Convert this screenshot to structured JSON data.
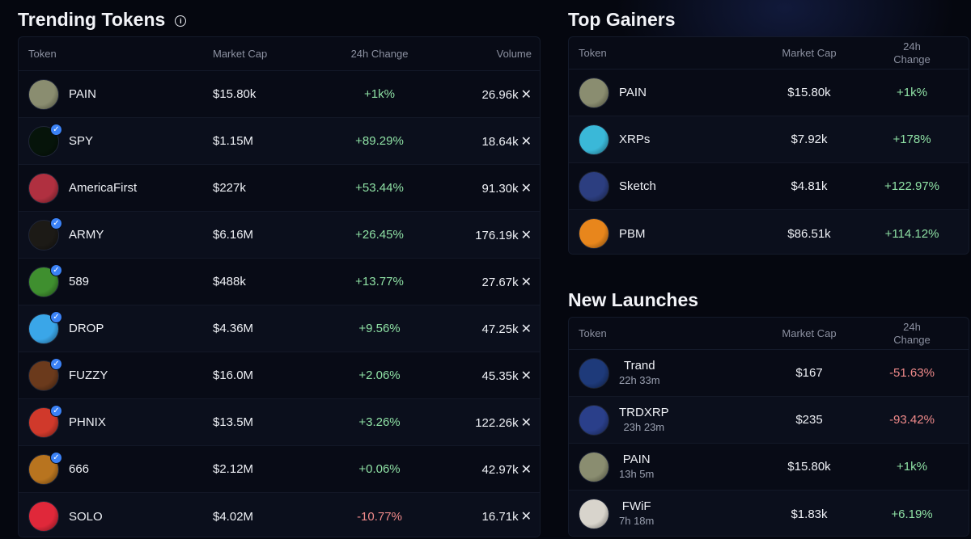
{
  "trending": {
    "title": "Trending Tokens",
    "headers": {
      "token": "Token",
      "mcap": "Market Cap",
      "change": "24h Change",
      "volume": "Volume"
    },
    "rows": [
      {
        "name": "PAIN",
        "mcap": "$15.80k",
        "change": "+1k%",
        "volume": "26.96k",
        "dir": "pos",
        "verified": false,
        "color": "#8a8d70"
      },
      {
        "name": "SPY",
        "mcap": "$1.15M",
        "change": "+89.29%",
        "volume": "18.64k",
        "dir": "pos",
        "verified": true,
        "color": "#06140a"
      },
      {
        "name": "AmericaFirst",
        "mcap": "$227k",
        "change": "+53.44%",
        "volume": "91.30k",
        "dir": "pos",
        "verified": false,
        "color": "#b03040"
      },
      {
        "name": "ARMY",
        "mcap": "$6.16M",
        "change": "+26.45%",
        "volume": "176.19k",
        "dir": "pos",
        "verified": true,
        "color": "#1c1a16"
      },
      {
        "name": "589",
        "mcap": "$488k",
        "change": "+13.77%",
        "volume": "27.67k",
        "dir": "pos",
        "verified": true,
        "color": "#3f8f2f"
      },
      {
        "name": "DROP",
        "mcap": "$4.36M",
        "change": "+9.56%",
        "volume": "47.25k",
        "dir": "pos",
        "verified": true,
        "color": "#3aa6e8"
      },
      {
        "name": "FUZZY",
        "mcap": "$16.0M",
        "change": "+2.06%",
        "volume": "45.35k",
        "dir": "pos",
        "verified": true,
        "color": "#6b3a1c"
      },
      {
        "name": "PHNIX",
        "mcap": "$13.5M",
        "change": "+3.26%",
        "volume": "122.26k",
        "dir": "pos",
        "verified": true,
        "color": "#d0392b"
      },
      {
        "name": "666",
        "mcap": "$2.12M",
        "change": "+0.06%",
        "volume": "42.97k",
        "dir": "pos",
        "verified": true,
        "color": "#b8741f"
      },
      {
        "name": "SOLO",
        "mcap": "$4.02M",
        "change": "-10.77%",
        "volume": "16.71k",
        "dir": "neg",
        "verified": false,
        "color": "#e0283a"
      }
    ]
  },
  "gainers": {
    "title": "Top Gainers",
    "headers": {
      "token": "Token",
      "mcap": "Market Cap",
      "change_l1": "24h",
      "change_l2": "Change"
    },
    "rows": [
      {
        "name": "PAIN",
        "mcap": "$15.80k",
        "change": "+1k%",
        "dir": "pos",
        "color": "#8a8d70"
      },
      {
        "name": "XRPs",
        "mcap": "$7.92k",
        "change": "+178%",
        "dir": "pos",
        "color": "#3ab8d8"
      },
      {
        "name": "Sketch",
        "mcap": "$4.81k",
        "change": "+122.97%",
        "dir": "pos",
        "color": "#2c3e80"
      },
      {
        "name": "PBM",
        "mcap": "$86.51k",
        "change": "+114.12%",
        "dir": "pos",
        "color": "#e8861c"
      }
    ]
  },
  "launches": {
    "title": "New Launches",
    "headers": {
      "token": "Token",
      "mcap": "Market Cap",
      "change_l1": "24h",
      "change_l2": "Change"
    },
    "rows": [
      {
        "name": "Trand",
        "age": "22h 33m",
        "mcap": "$167",
        "change": "-51.63%",
        "dir": "neg",
        "color": "#1e3a7a"
      },
      {
        "name": "TRDXRP",
        "age": "23h 23m",
        "mcap": "$235",
        "change": "-93.42%",
        "dir": "neg",
        "color": "#2a3f8a"
      },
      {
        "name": "PAIN",
        "age": "13h 5m",
        "mcap": "$15.80k",
        "change": "+1k%",
        "dir": "pos",
        "color": "#8a8d70"
      },
      {
        "name": "FWiF",
        "age": "7h 18m",
        "mcap": "$1.83k",
        "change": "+6.19%",
        "dir": "pos",
        "color": "#d8d4cc"
      }
    ]
  }
}
